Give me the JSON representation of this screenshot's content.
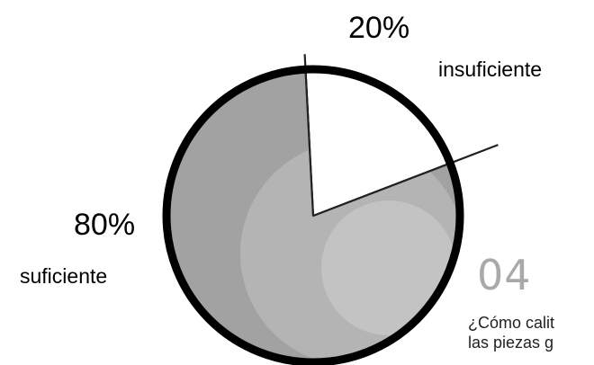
{
  "chart_data": {
    "type": "pie",
    "categories": [
      "insuficiente",
      "suficiente"
    ],
    "values": [
      20,
      80
    ],
    "value_labels": [
      "20%",
      "80%"
    ],
    "colors": [
      "#ffffff",
      "#a2a2a2"
    ],
    "outline_color": "#000000",
    "title": "",
    "legend": "none"
  },
  "section": {
    "number": "04",
    "question_lines": [
      "¿Cómo calit",
      "las piezas g"
    ]
  }
}
